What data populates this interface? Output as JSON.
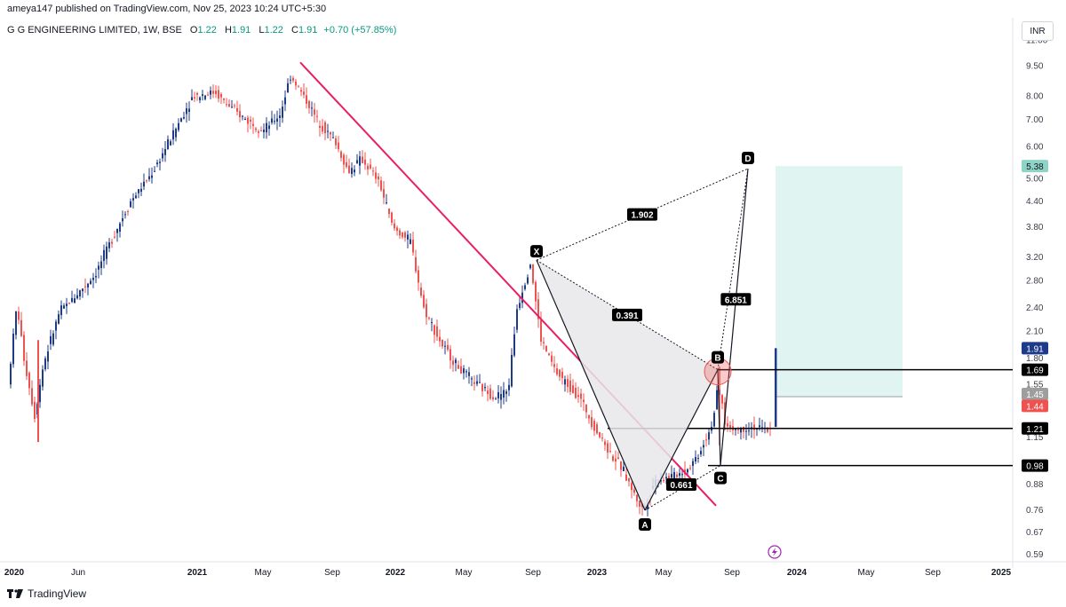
{
  "published": "ameya147 published on TradingView.com, Nov 25, 2023 10:24 UTC+5:30",
  "symbol": {
    "name": "G G ENGINEERING LIMITED, 1W, BSE",
    "o_label": "O",
    "o": "1.22",
    "h_label": "H",
    "h": "1.91",
    "l_label": "L",
    "l": "1.22",
    "c_label": "C",
    "c": "1.91",
    "change": "+0.70 (+57.85%)"
  },
  "currency": "INR",
  "footer": "TradingView",
  "colors": {
    "up": "#1e3a8a",
    "down": "#ef5350",
    "trendline": "#e91e63",
    "target_zone": "#e0f4f1",
    "pattern_fill": "#e8e8ea",
    "price_tag": "#1e3a8a"
  },
  "chart_data": {
    "type": "candlestick",
    "y_scale": "log",
    "ylim": [
      0.57,
      11.3
    ],
    "y_ticks": [
      "11.00",
      "9.50",
      "8.00",
      "7.00",
      "6.00",
      "5.00",
      "4.40",
      "3.80",
      "3.20",
      "2.80",
      "2.40",
      "2.10",
      "1.80",
      "1.55",
      "1.35",
      "1.15",
      "0.88",
      "0.76",
      "0.67",
      "0.59"
    ],
    "x_ticks": [
      "2020",
      "Jun",
      "2021",
      "May",
      "Sep",
      "2022",
      "May",
      "Sep",
      "2023",
      "May",
      "Sep",
      "2024",
      "May",
      "Sep",
      "2025"
    ],
    "price_labels": [
      {
        "value": 5.38,
        "text": "5.38",
        "color": "#8fd3c6",
        "text_color": "#131722"
      },
      {
        "value": 1.91,
        "text": "1.91",
        "color": "#1e3a8a",
        "text_color": "#ffffff"
      },
      {
        "value": 1.69,
        "text": "1.69",
        "color": "#000000",
        "text_color": "#ffffff"
      },
      {
        "value": 1.45,
        "text": "1.45",
        "color": "#9e9e9e",
        "text_color": "#ffffff"
      },
      {
        "value": 1.44,
        "text": "1.44",
        "color": "#ef5350",
        "text_color": "#ffffff"
      },
      {
        "value": 1.21,
        "text": "1.21",
        "color": "#000000",
        "text_color": "#ffffff"
      },
      {
        "value": 0.98,
        "text": "0.98",
        "color": "#000000",
        "text_color": "#ffffff"
      }
    ],
    "horizontal_levels": [
      1.69,
      1.21,
      0.98
    ],
    "pattern_points": [
      {
        "label": "X",
        "price": 3.15
      },
      {
        "label": "A",
        "price": 0.76
      },
      {
        "label": "B",
        "price": 1.69
      },
      {
        "label": "C",
        "price": 0.98
      },
      {
        "label": "D",
        "price": 5.3
      }
    ],
    "ratios": [
      "1.902",
      "0.391",
      "6.851",
      "0.661"
    ],
    "target_zone": {
      "top": 5.38,
      "bottom": 1.45
    },
    "trendline": {
      "from_price": 9.7,
      "to_price": 0.78
    }
  }
}
